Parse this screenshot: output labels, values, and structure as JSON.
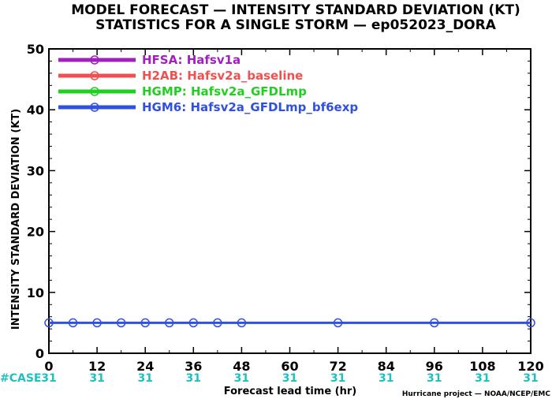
{
  "title_line1": "MODEL FORECAST — INTENSITY STANDARD DEVIATION (KT)",
  "title_line2": "STATISTICS FOR A SINGLE STORM — ep052023_DORA",
  "credit": "Hurricane project — NOAA/NCEP/EMC",
  "chart_data": {
    "type": "line",
    "xlabel": "Forecast lead time (hr)",
    "ylabel": "INTENSITY STANDARD DEVIATION (KT)",
    "xlim": [
      0,
      120
    ],
    "ylim": [
      0,
      50
    ],
    "xticks": [
      0,
      12,
      24,
      36,
      48,
      60,
      72,
      84,
      96,
      108,
      120
    ],
    "yticks": [
      0,
      10,
      20,
      30,
      40,
      50
    ],
    "grid": false,
    "legend_position": "top-left",
    "series": [
      {
        "name": "HFSA: Hafsv1a",
        "color": "#a020c0",
        "x": [],
        "y": []
      },
      {
        "name": "H2AB: Hafsv2a_baseline",
        "color": "#f05050",
        "x": [],
        "y": []
      },
      {
        "name": "HGMP: Hafsv2a_GFDLmp",
        "color": "#20d020",
        "x": [],
        "y": []
      },
      {
        "name": "HGM6: Hafsv2a_GFDLmp_bf6exp",
        "color": "#3050e0",
        "x": [
          0,
          6,
          12,
          18,
          24,
          30,
          36,
          42,
          48,
          72,
          96,
          120
        ],
        "y": [
          5,
          5,
          5,
          5,
          5,
          5,
          5,
          5,
          5,
          5,
          5,
          5
        ]
      }
    ],
    "cases": {
      "label": "#CASE",
      "x": [
        0,
        12,
        24,
        36,
        48,
        60,
        72,
        84,
        96,
        108,
        120
      ],
      "counts": [
        "31",
        "31",
        "31",
        "31",
        "31",
        "31",
        "31",
        "31",
        "31",
        "31",
        "31"
      ]
    }
  }
}
